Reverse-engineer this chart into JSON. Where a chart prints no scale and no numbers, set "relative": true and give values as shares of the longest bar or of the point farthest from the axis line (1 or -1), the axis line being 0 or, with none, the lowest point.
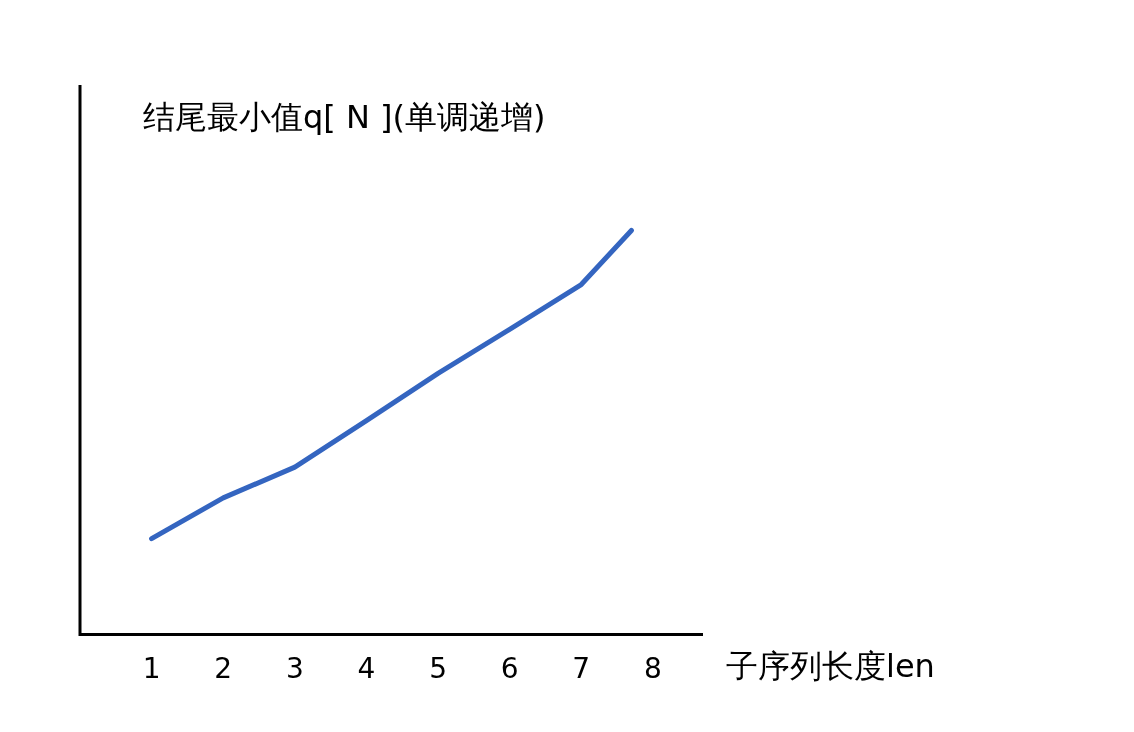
{
  "chart_data": {
    "type": "line",
    "relative": true,
    "xlabel": "子序列长度len",
    "ylabel": "结尾最小值q[ N ](单调递增)",
    "x": [
      1,
      2,
      3,
      4,
      5,
      6,
      7,
      7.7
    ],
    "xlim": [
      0,
      8.7
    ],
    "xticks": [
      1,
      2,
      3,
      4,
      5,
      6,
      7,
      8
    ],
    "series": [
      {
        "color": "#3465c0",
        "values": [
          0.237,
          0.338,
          0.414,
          0.529,
          0.646,
          0.755,
          0.866,
          1.0
        ]
      }
    ],
    "grid": false,
    "legend": false,
    "marker": "none",
    "line_style": "solid"
  }
}
